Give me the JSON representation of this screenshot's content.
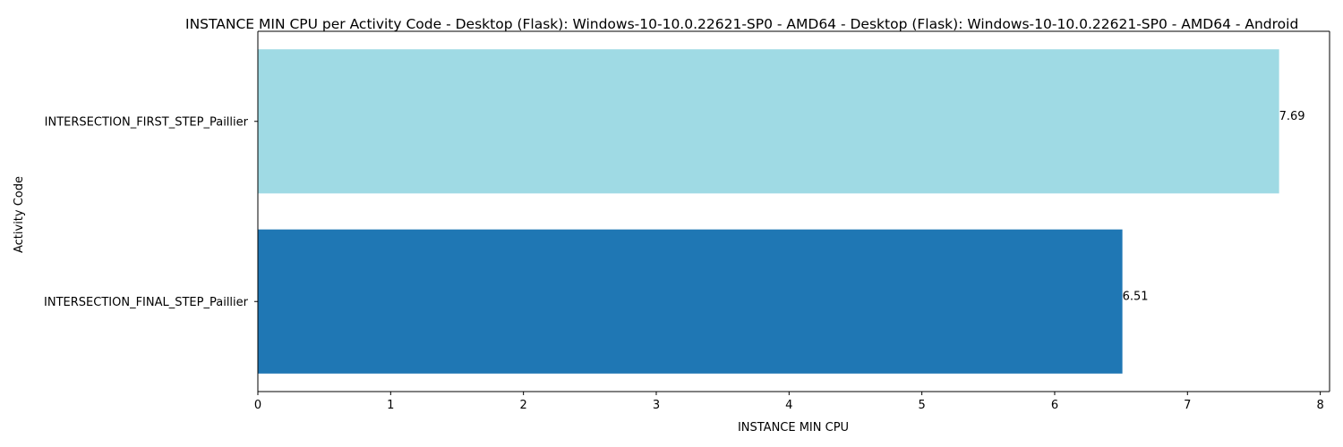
{
  "chart_data": {
    "type": "bar",
    "orientation": "horizontal",
    "title": "INSTANCE MIN CPU per Activity Code - Desktop (Flask): Windows-10-10.0.22621-SP0 - AMD64 - Desktop (Flask): Windows-10-10.0.22621-SP0 - AMD64 - Android",
    "xlabel": "INSTANCE MIN CPU",
    "ylabel": "Activity Code",
    "xlim": [
      0,
      8.07
    ],
    "xticks": [
      0,
      1,
      2,
      3,
      4,
      5,
      6,
      7,
      8
    ],
    "grid": false,
    "categories": [
      "INTERSECTION_FIRST_STEP_Paillier",
      "INTERSECTION_FINAL_STEP_Paillier"
    ],
    "values": [
      7.69,
      6.51
    ],
    "data_labels": [
      "7.69",
      "6.51"
    ],
    "colors": [
      "#9fdae4",
      "#1f77b4"
    ]
  }
}
